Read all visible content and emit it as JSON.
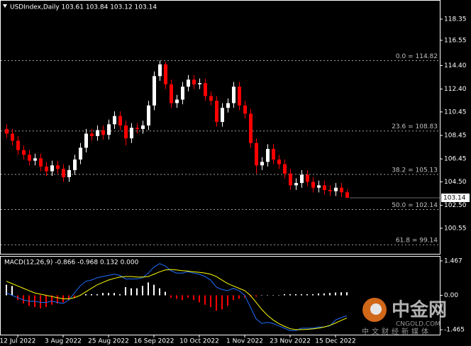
{
  "chart_data": {
    "type": "candlestick",
    "title": "USDIndex,Daily  103.61 103.84 103.12 103.14",
    "categories": [
      null,
      null,
      "12 Jul 2022",
      null,
      null,
      null,
      null,
      null,
      null,
      null,
      "3 Aug 2022",
      null,
      null,
      null,
      null,
      null,
      null,
      null,
      "25 Aug 2022",
      null,
      null,
      null,
      null,
      null,
      null,
      null,
      "16 Sep 2022",
      null,
      null,
      null,
      null,
      null,
      null,
      null,
      "10 Oct 2022",
      null,
      null,
      null,
      null,
      null,
      null,
      null,
      "1 Nov 2022",
      null,
      null,
      null,
      null,
      null,
      null,
      null,
      "23 Nov 2022",
      null,
      null,
      null,
      null,
      null,
      null,
      null,
      "15 Dec 2022",
      null,
      null
    ],
    "open": [
      109.0,
      108.6,
      108.0,
      107.2,
      106.8,
      106.3,
      106.5,
      105.8,
      105.4,
      105.9,
      105.6,
      104.9,
      105.5,
      106.4,
      107.4,
      108.6,
      108.4,
      108.9,
      108.5,
      109.4,
      110.1,
      109.3,
      108.2,
      109.1,
      109.0,
      109.3,
      111.0,
      113.5,
      114.5,
      112.8,
      111.2,
      111.5,
      112.6,
      113.2,
      112.8,
      112.9,
      111.8,
      111.4,
      109.6,
      110.8,
      111.2,
      112.6,
      111.0,
      110.3,
      107.8,
      105.9,
      106.2,
      107.3,
      106.4,
      106.0,
      105.2,
      104.2,
      104.4,
      105.1,
      104.5,
      104.0,
      104.2,
      103.8,
      103.7,
      104.0,
      103.61
    ],
    "high": [
      109.4,
      109.0,
      108.4,
      107.6,
      107.2,
      106.9,
      106.9,
      106.2,
      106.3,
      106.3,
      106.0,
      105.9,
      106.8,
      107.8,
      109.0,
      109.0,
      109.3,
      109.3,
      109.8,
      110.5,
      110.5,
      109.7,
      109.5,
      109.5,
      109.7,
      111.4,
      113.9,
      114.82,
      114.7,
      113.2,
      111.9,
      113.0,
      113.6,
      113.6,
      113.3,
      113.3,
      112.2,
      111.8,
      111.2,
      111.6,
      113.0,
      113.0,
      111.4,
      110.7,
      108.2,
      106.6,
      107.7,
      107.7,
      106.8,
      106.4,
      105.6,
      104.8,
      105.5,
      105.5,
      104.9,
      104.6,
      104.6,
      104.2,
      104.4,
      104.4,
      103.84
    ],
    "low": [
      108.2,
      107.6,
      106.8,
      106.4,
      105.9,
      105.9,
      105.4,
      105.0,
      105.0,
      105.2,
      104.5,
      104.5,
      105.1,
      106.0,
      107.0,
      108.0,
      108.0,
      108.1,
      108.1,
      109.0,
      108.9,
      107.6,
      107.8,
      108.6,
      108.6,
      108.9,
      110.6,
      113.1,
      112.4,
      110.8,
      110.8,
      111.1,
      112.2,
      112.4,
      112.4,
      111.4,
      111.0,
      109.2,
      109.2,
      110.4,
      110.8,
      110.6,
      109.9,
      107.4,
      105.2,
      105.5,
      105.8,
      106.0,
      105.6,
      104.8,
      103.8,
      103.8,
      104.0,
      104.1,
      103.6,
      103.6,
      103.4,
      103.3,
      103.3,
      103.2,
      103.12
    ],
    "close": [
      108.6,
      108.0,
      107.2,
      106.8,
      106.3,
      106.5,
      105.8,
      105.4,
      105.9,
      105.6,
      104.9,
      105.5,
      106.4,
      107.4,
      108.6,
      108.4,
      108.9,
      108.5,
      109.4,
      110.1,
      109.3,
      108.2,
      109.1,
      109.0,
      109.3,
      111.0,
      113.5,
      114.5,
      112.8,
      111.2,
      111.5,
      112.6,
      113.2,
      112.8,
      112.9,
      111.8,
      111.4,
      109.6,
      110.8,
      111.2,
      112.6,
      111.0,
      110.3,
      107.8,
      105.9,
      106.2,
      107.3,
      106.4,
      106.0,
      105.2,
      104.2,
      104.4,
      105.1,
      104.5,
      104.0,
      104.2,
      103.8,
      103.7,
      104.0,
      103.61,
      103.14
    ],
    "up_color": "#ffffff",
    "down_color": "#ff0000",
    "ylim": [
      98.37,
      119.98
    ],
    "yticks": [
      118.35,
      116.55,
      {
        "value": 114.4,
        "label": "114.40"
      },
      {
        "value": 112.4,
        "label": "112.40"
      },
      110.45,
      108.45,
      106.45,
      {
        "value": 104.5,
        "label": "104.50"
      },
      {
        "value": 102.5,
        "label": "102.50"
      },
      100.55
    ],
    "fib_levels": [
      {
        "value": 114.82,
        "label": "0.0 = 114.82"
      },
      {
        "value": 108.83,
        "label": "23.6 = 108.83"
      },
      {
        "value": 105.13,
        "label": "38.2 = 105.13"
      },
      {
        "value": 102.14,
        "label": "50.0 = 102.14"
      },
      {
        "value": 99.14,
        "label": "61.8 = 99.14"
      }
    ],
    "fib_color": "#a0a0a0",
    "current_price": {
      "value": 103.14,
      "label": "103.14"
    },
    "macd": {
      "title": "MACD(12,26,9) -0.866 -0.968 0.132 0.000",
      "ylim": [
        -1.675,
        1.647
      ],
      "yticks": [
        1.467,
        {
          "value": 0,
          "label": "0.00"
        },
        -1.465
      ],
      "histogram": [
        0.45,
        0.4,
        -0.2,
        -0.35,
        -0.45,
        -0.5,
        -0.55,
        -0.5,
        -0.4,
        -0.35,
        -0.3,
        -0.2,
        -0.1,
        0.0,
        0.05,
        0.05,
        0.05,
        0.1,
        0.1,
        0.1,
        0.05,
        0.35,
        0.3,
        0.3,
        0.4,
        0.55,
        0.45,
        0.3,
        0.15,
        -0.1,
        -0.15,
        -0.2,
        -0.1,
        -0.2,
        -0.3,
        -0.4,
        -0.5,
        -0.65,
        -0.6,
        -0.45,
        -0.2,
        -0.15,
        -0.1,
        -0.05,
        -0.05,
        0.0,
        0.0,
        0.0,
        0.0,
        0.05,
        0.05,
        0.05,
        0.05,
        0.05,
        0.05,
        0.08,
        0.08,
        0.1,
        0.12,
        0.13,
        0.132
      ],
      "hist_up_color": "#ffffff",
      "hist_down_color": "#ff0000",
      "main": [
        0.1,
        0.0,
        -0.1,
        -0.2,
        -0.25,
        -0.25,
        -0.3,
        -0.3,
        -0.25,
        -0.3,
        -0.35,
        -0.2,
        0.1,
        0.4,
        0.6,
        0.65,
        0.75,
        0.8,
        0.85,
        0.9,
        0.85,
        0.7,
        0.7,
        0.7,
        0.75,
        0.95,
        1.2,
        1.35,
        1.25,
        1.05,
        0.95,
        0.95,
        1.0,
        0.95,
        0.9,
        0.8,
        0.65,
        0.35,
        0.25,
        0.2,
        0.3,
        0.2,
        0.0,
        -0.5,
        -1.0,
        -1.2,
        -1.15,
        -1.2,
        -1.3,
        -1.4,
        -1.5,
        -1.5,
        -1.4,
        -1.4,
        -1.4,
        -1.35,
        -1.35,
        -1.3,
        -1.05,
        -0.95,
        -0.866
      ],
      "main_color": "#1e6fff",
      "signal": [
        0.6,
        0.5,
        0.4,
        0.3,
        0.2,
        0.1,
        0.05,
        0.0,
        -0.05,
        -0.1,
        -0.15,
        -0.15,
        -0.1,
        0.0,
        0.15,
        0.3,
        0.45,
        0.55,
        0.65,
        0.72,
        0.78,
        0.8,
        0.8,
        0.78,
        0.78,
        0.8,
        0.9,
        1.0,
        1.08,
        1.1,
        1.08,
        1.05,
        1.03,
        1.0,
        0.98,
        0.95,
        0.9,
        0.8,
        0.65,
        0.5,
        0.4,
        0.3,
        0.2,
        0.0,
        -0.3,
        -0.6,
        -0.85,
        -1.05,
        -1.2,
        -1.32,
        -1.42,
        -1.46,
        -1.46,
        -1.45,
        -1.43,
        -1.4,
        -1.35,
        -1.28,
        -1.18,
        -1.07,
        -0.968
      ],
      "signal_color": "#ffff00"
    }
  },
  "watermark": {
    "name": "中金网",
    "site": "CNGOLD.COM",
    "slogan": "中文财经新媒体"
  }
}
